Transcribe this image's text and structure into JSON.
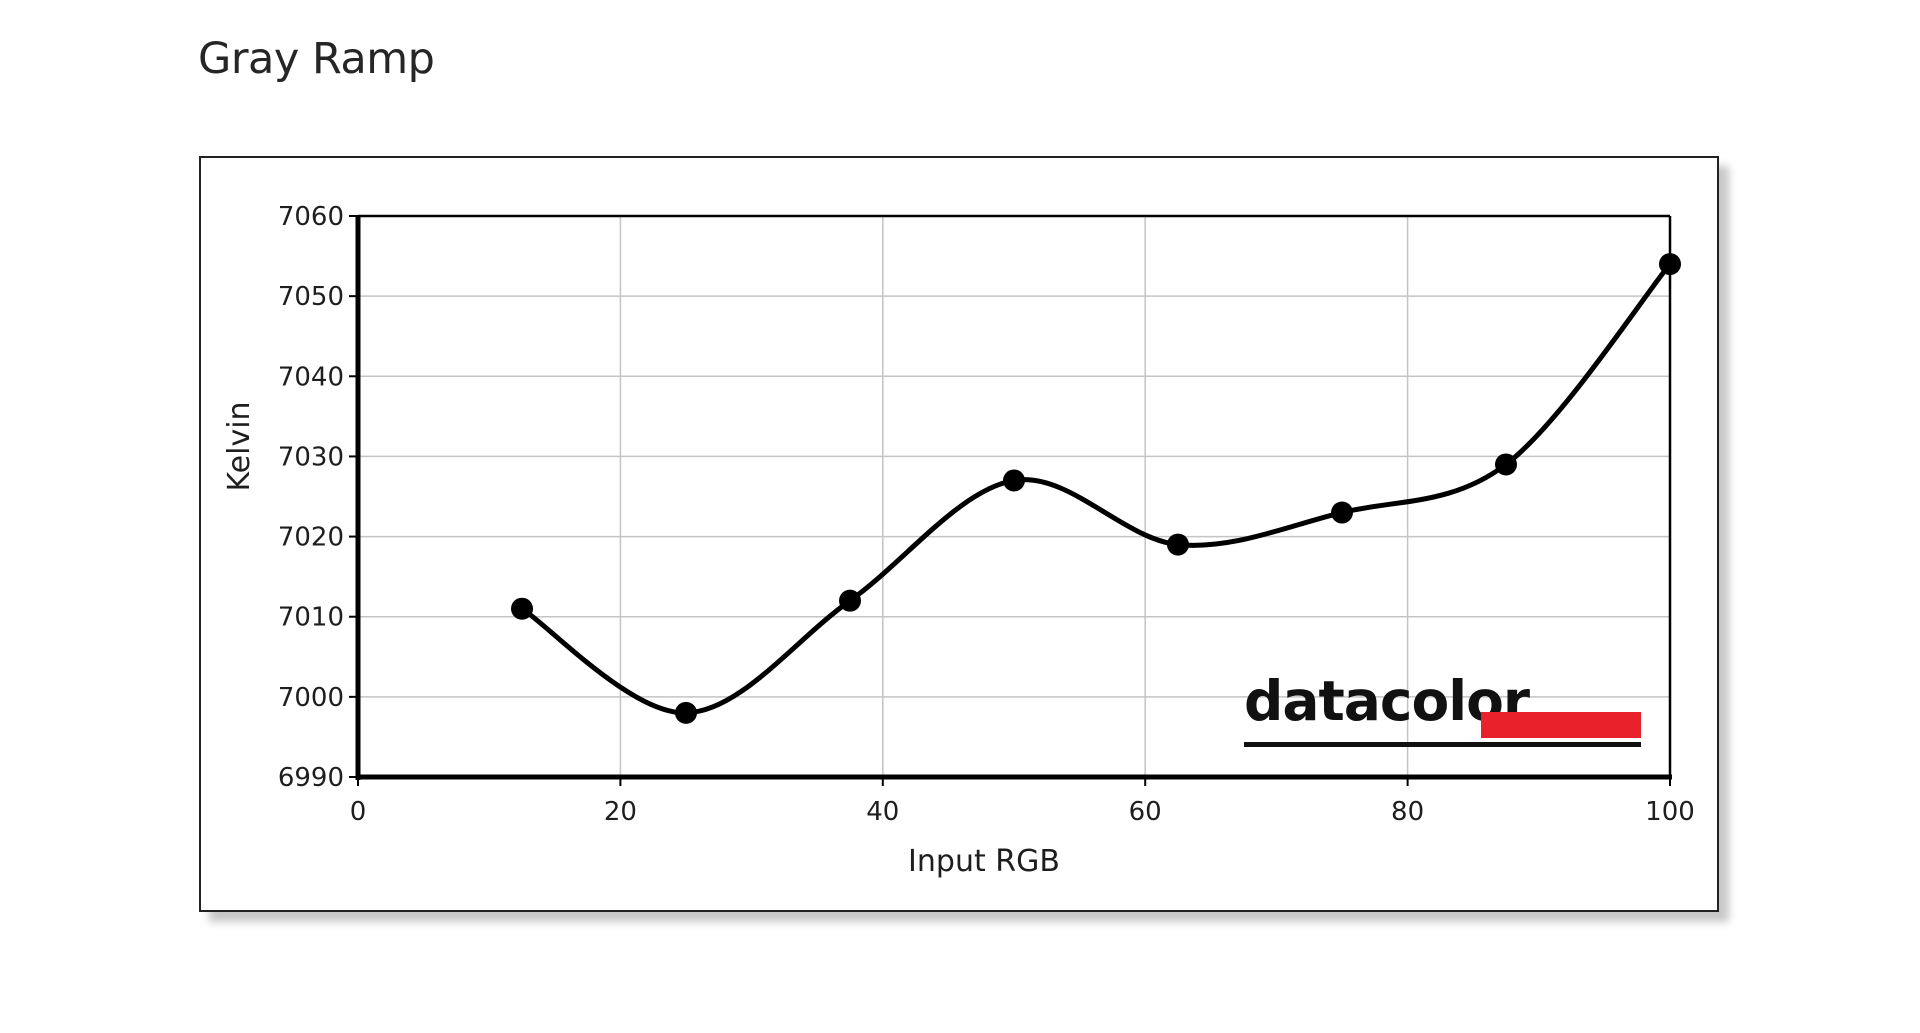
{
  "page": {
    "title": "Gray Ramp"
  },
  "chart_data": {
    "type": "line",
    "title": "",
    "xlabel": "Input RGB",
    "ylabel": "Kelvin",
    "xlim": [
      0,
      100
    ],
    "ylim": [
      6990,
      7060
    ],
    "x_ticks": [
      0,
      20,
      40,
      60,
      80,
      100
    ],
    "y_ticks": [
      6990,
      7000,
      7010,
      7020,
      7030,
      7040,
      7050,
      7060
    ],
    "grid": true,
    "smooth": true,
    "line_color": "#000000",
    "marker_color": "#000000",
    "series": [
      {
        "x": [
          12.5,
          25,
          37.5,
          50,
          62.5,
          75,
          87.5,
          100
        ],
        "values": [
          7011,
          6998,
          7012,
          7027,
          7019,
          7023,
          7029,
          7054
        ]
      }
    ],
    "logo": {
      "text": "datacolor",
      "bar_color": "#e8212a"
    }
  }
}
